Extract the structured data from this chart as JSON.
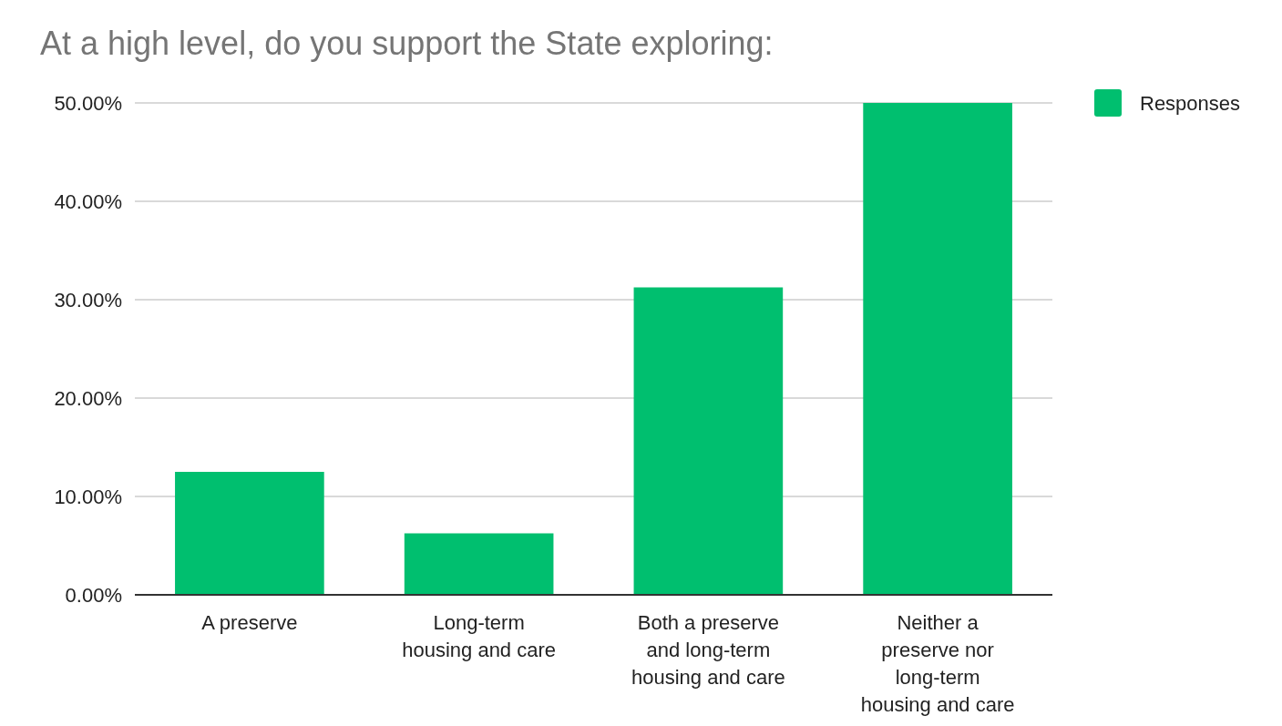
{
  "chart_data": {
    "type": "bar",
    "title": "At a high level, do you support the State exploring:",
    "categories": [
      "A preserve",
      "Long-term housing and care",
      "Both a preserve and long-term housing and care",
      "Neither a preserve nor long-term housing and care"
    ],
    "series": [
      {
        "name": "Responses",
        "color": "#00bf6f",
        "values": [
          12.5,
          6.25,
          31.25,
          50
        ]
      }
    ],
    "ylim": [
      0,
      50
    ],
    "yticks": [
      {
        "value": 0,
        "label": "0.00%"
      },
      {
        "value": 10,
        "label": "10.00%"
      },
      {
        "value": 20,
        "label": "20.00%"
      },
      {
        "value": 30,
        "label": "30.00%"
      },
      {
        "value": 40,
        "label": "40.00%"
      },
      {
        "value": 50,
        "label": "50.00%"
      }
    ],
    "grid": "y",
    "legend": "top right"
  }
}
